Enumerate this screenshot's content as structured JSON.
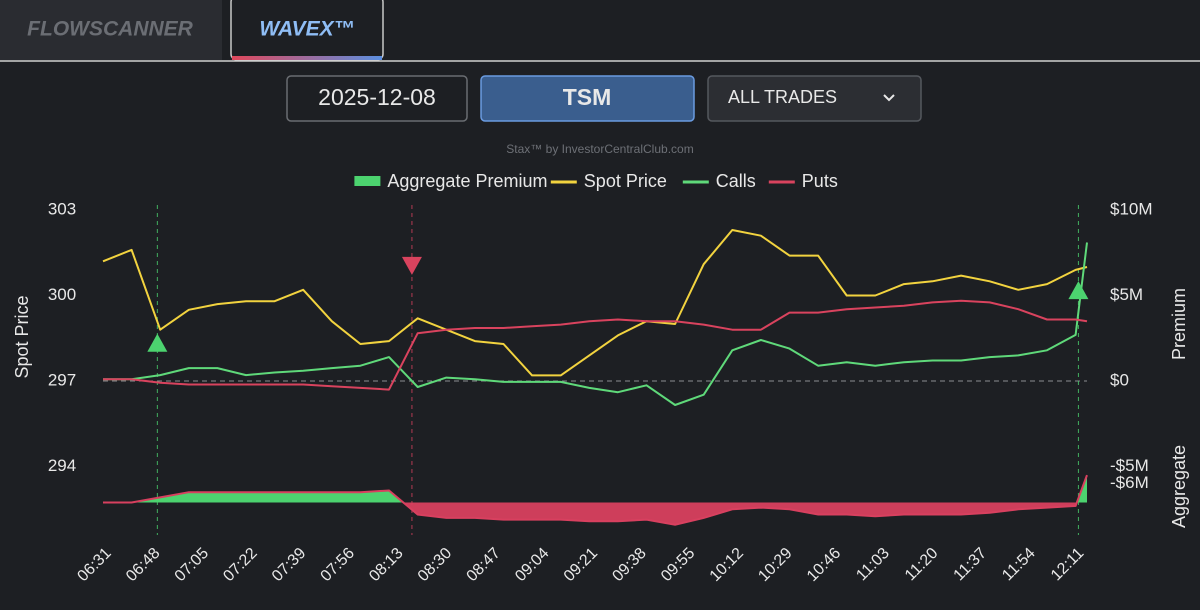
{
  "tabs": [
    "FLOWSCANNER",
    "WAVEX™"
  ],
  "controls": {
    "date": "2025-12-08",
    "symbol": "TSM",
    "filter": "ALL TRADES"
  },
  "watermark": "Stax™ by InvestorCentralClub.com",
  "chart_data": {
    "type": "line",
    "ylabel": "Spot Price",
    "y2label": "Aggregate Premium",
    "ylim": [
      291.6,
      303
    ],
    "yticks": [
      303,
      300,
      297,
      294
    ],
    "y2lim": [
      -9,
      10
    ],
    "y2ticks": [
      {
        "value": 10,
        "label": "$10M"
      },
      {
        "value": 5,
        "label": "$5M"
      },
      {
        "value": 0,
        "label": "$0"
      },
      {
        "value": -5,
        "label": "-$5M"
      },
      {
        "value": -6,
        "label": "-$6M"
      }
    ],
    "zero_line": true,
    "xlim": [
      "06:31",
      "12:15"
    ],
    "xticks": [
      "06:31",
      "06:48",
      "07:05",
      "07:22",
      "07:39",
      "07:56",
      "08:13",
      "08:30",
      "08:47",
      "09:04",
      "09:21",
      "09:38",
      "09:55",
      "10:12",
      "10:29",
      "10:46",
      "11:03",
      "11:20",
      "11:37",
      "11:54",
      "12:11"
    ],
    "x": [
      "06:31",
      "06:41",
      "06:51",
      "07:01",
      "07:11",
      "07:21",
      "07:31",
      "07:41",
      "07:51",
      "08:01",
      "08:11",
      "08:21",
      "08:31",
      "08:41",
      "08:51",
      "09:01",
      "09:11",
      "09:21",
      "09:31",
      "09:41",
      "09:51",
      "10:01",
      "10:11",
      "10:21",
      "10:31",
      "10:41",
      "10:51",
      "11:01",
      "11:11",
      "11:21",
      "11:31",
      "11:41",
      "11:51",
      "12:01",
      "12:11",
      "12:15"
    ],
    "series": [
      {
        "name": "Aggregate Premium",
        "axis": "y2",
        "fill": true,
        "color": "#4cd36f",
        "negative_color": "#d8405f",
        "values": [
          -7.1,
          -7.1,
          -6.8,
          -6.5,
          -6.5,
          -6.5,
          -6.5,
          -6.5,
          -6.5,
          -6.5,
          -6.4,
          -7.8,
          -8.0,
          -8.0,
          -8.1,
          -8.1,
          -8.1,
          -8.2,
          -8.2,
          -8.1,
          -8.4,
          -8.0,
          -7.5,
          -7.4,
          -7.5,
          -7.8,
          -7.8,
          -7.9,
          -7.8,
          -7.8,
          -7.8,
          -7.7,
          -7.5,
          -7.4,
          -7.3,
          -5.5
        ]
      },
      {
        "name": "Spot Price",
        "color": "#f2d33f",
        "values": [
          301.2,
          301.6,
          298.8,
          299.5,
          299.7,
          299.8,
          299.8,
          300.2,
          299.1,
          298.3,
          298.4,
          299.2,
          298.8,
          298.4,
          298.3,
          297.2,
          297.2,
          297.9,
          298.6,
          299.1,
          299.0,
          301.1,
          302.3,
          302.1,
          301.4,
          301.4,
          300.0,
          300.0,
          300.4,
          300.5,
          300.7,
          300.5,
          300.2,
          300.4,
          300.9,
          301.0
        ]
      },
      {
        "name": "Calls",
        "axis": "y2",
        "color": "#5fd97a",
        "values": [
          0.1,
          0.1,
          0.35,
          0.76,
          0.76,
          0.35,
          0.5,
          0.6,
          0.76,
          0.9,
          1.4,
          -0.35,
          0.2,
          0.1,
          -0.05,
          -0.05,
          -0.05,
          -0.4,
          -0.65,
          -0.25,
          -1.4,
          -0.8,
          1.8,
          2.4,
          1.9,
          0.9,
          1.1,
          0.9,
          1.1,
          1.2,
          1.2,
          1.4,
          1.5,
          1.8,
          2.7,
          8.1
        ]
      },
      {
        "name": "Puts",
        "axis": "y2",
        "color": "#d9435e",
        "values": [
          0.1,
          0.1,
          -0.1,
          -0.2,
          -0.2,
          -0.2,
          -0.2,
          -0.2,
          -0.3,
          -0.4,
          -0.5,
          2.8,
          3.0,
          3.1,
          3.1,
          3.2,
          3.3,
          3.5,
          3.6,
          3.5,
          3.5,
          3.3,
          3.0,
          3.0,
          4.0,
          4.0,
          4.2,
          4.3,
          4.4,
          4.6,
          4.7,
          4.6,
          4.2,
          3.6,
          3.6,
          3.5
        ]
      }
    ],
    "signals": [
      {
        "x": "06:50",
        "direction": "up",
        "color": "#4cd36f"
      },
      {
        "x": "08:19",
        "direction": "down",
        "color": "#d9435e"
      },
      {
        "x": "12:12",
        "direction": "up",
        "color": "#4cd36f"
      }
    ]
  }
}
